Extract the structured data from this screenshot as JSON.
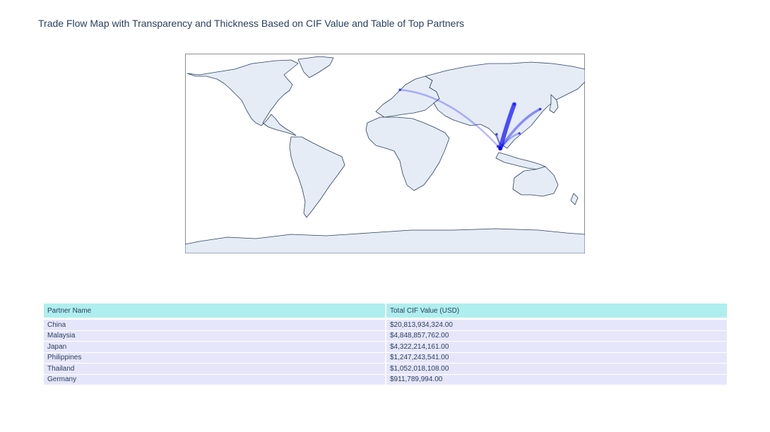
{
  "title": "Trade Flow Map with Transparency and Thickness Based on CIF Value and Table of Top Partners",
  "colors": {
    "flow": "#0000ff",
    "land": "#e5ecf6",
    "coast": "#2a3f5f",
    "header_fill": "#afeeee",
    "cell_fill": "#e6e6fa"
  },
  "chart_data": [
    {
      "type": "map",
      "projection": "equirectangular",
      "hub": {
        "lon": 103.8,
        "lat": 1.35
      },
      "flows": [
        {
          "partner": "China",
          "lon": 116.4,
          "lat": 39.9,
          "value": 20813934324
        },
        {
          "partner": "Malaysia",
          "lon": 101.7,
          "lat": 3.1,
          "value": 4848857762
        },
        {
          "partner": "Japan",
          "lon": 139.7,
          "lat": 35.7,
          "value": 4322214161
        },
        {
          "partner": "Philippines",
          "lon": 121.0,
          "lat": 14.6,
          "value": 1247243541
        },
        {
          "partner": "Thailand",
          "lon": 100.5,
          "lat": 13.8,
          "value": 1052018108
        },
        {
          "partner": "Germany",
          "lon": 13.4,
          "lat": 52.5,
          "value": 911789994
        }
      ]
    },
    {
      "type": "table",
      "columns": [
        "Partner Name",
        "Total CIF Value (USD)"
      ],
      "rows": [
        [
          "China",
          "$20,813,934,324.00"
        ],
        [
          "Malaysia",
          "$4,848,857,762.00"
        ],
        [
          "Japan",
          "$4,322,214,161.00"
        ],
        [
          "Philippines",
          "$1,247,243,541.00"
        ],
        [
          "Thailand",
          "$1,052,018,108.00"
        ],
        [
          "Germany",
          "$911,789,994.00"
        ]
      ]
    }
  ]
}
